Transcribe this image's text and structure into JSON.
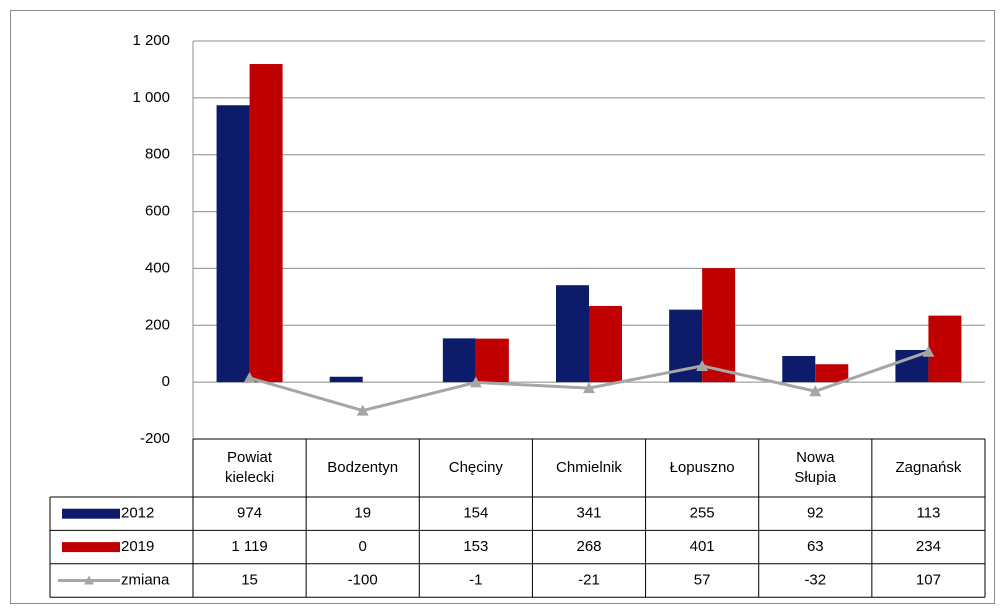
{
  "chart_data": {
    "type": "bar",
    "categories": [
      "Powiat kielecki",
      "Bodzentyn",
      "Chęciny",
      "Chmielnik",
      "Łopuszno",
      "Nowa Słupia",
      "Zagnańsk"
    ],
    "series": [
      {
        "name": "2012",
        "color": "#0c1c6b",
        "values": [
          974,
          19,
          154,
          341,
          255,
          92,
          113
        ]
      },
      {
        "name": "2019",
        "color": "#c00000",
        "values": [
          1119,
          0,
          153,
          268,
          401,
          63,
          234
        ],
        "value_labels": [
          "1 119",
          "0",
          "153",
          "268",
          "401",
          "63",
          "234"
        ]
      },
      {
        "name": "zmiana",
        "type": "line",
        "color": "#a6a6a6",
        "values": [
          15,
          -100,
          -1,
          -21,
          57,
          -32,
          107
        ]
      }
    ],
    "ylim": [
      -200,
      1200
    ],
    "yticks": [
      -200,
      0,
      200,
      400,
      600,
      800,
      {
        "value": 1000,
        "label": "1 000"
      },
      {
        "value": 1200,
        "label": "1 200"
      }
    ],
    "grid": true
  }
}
